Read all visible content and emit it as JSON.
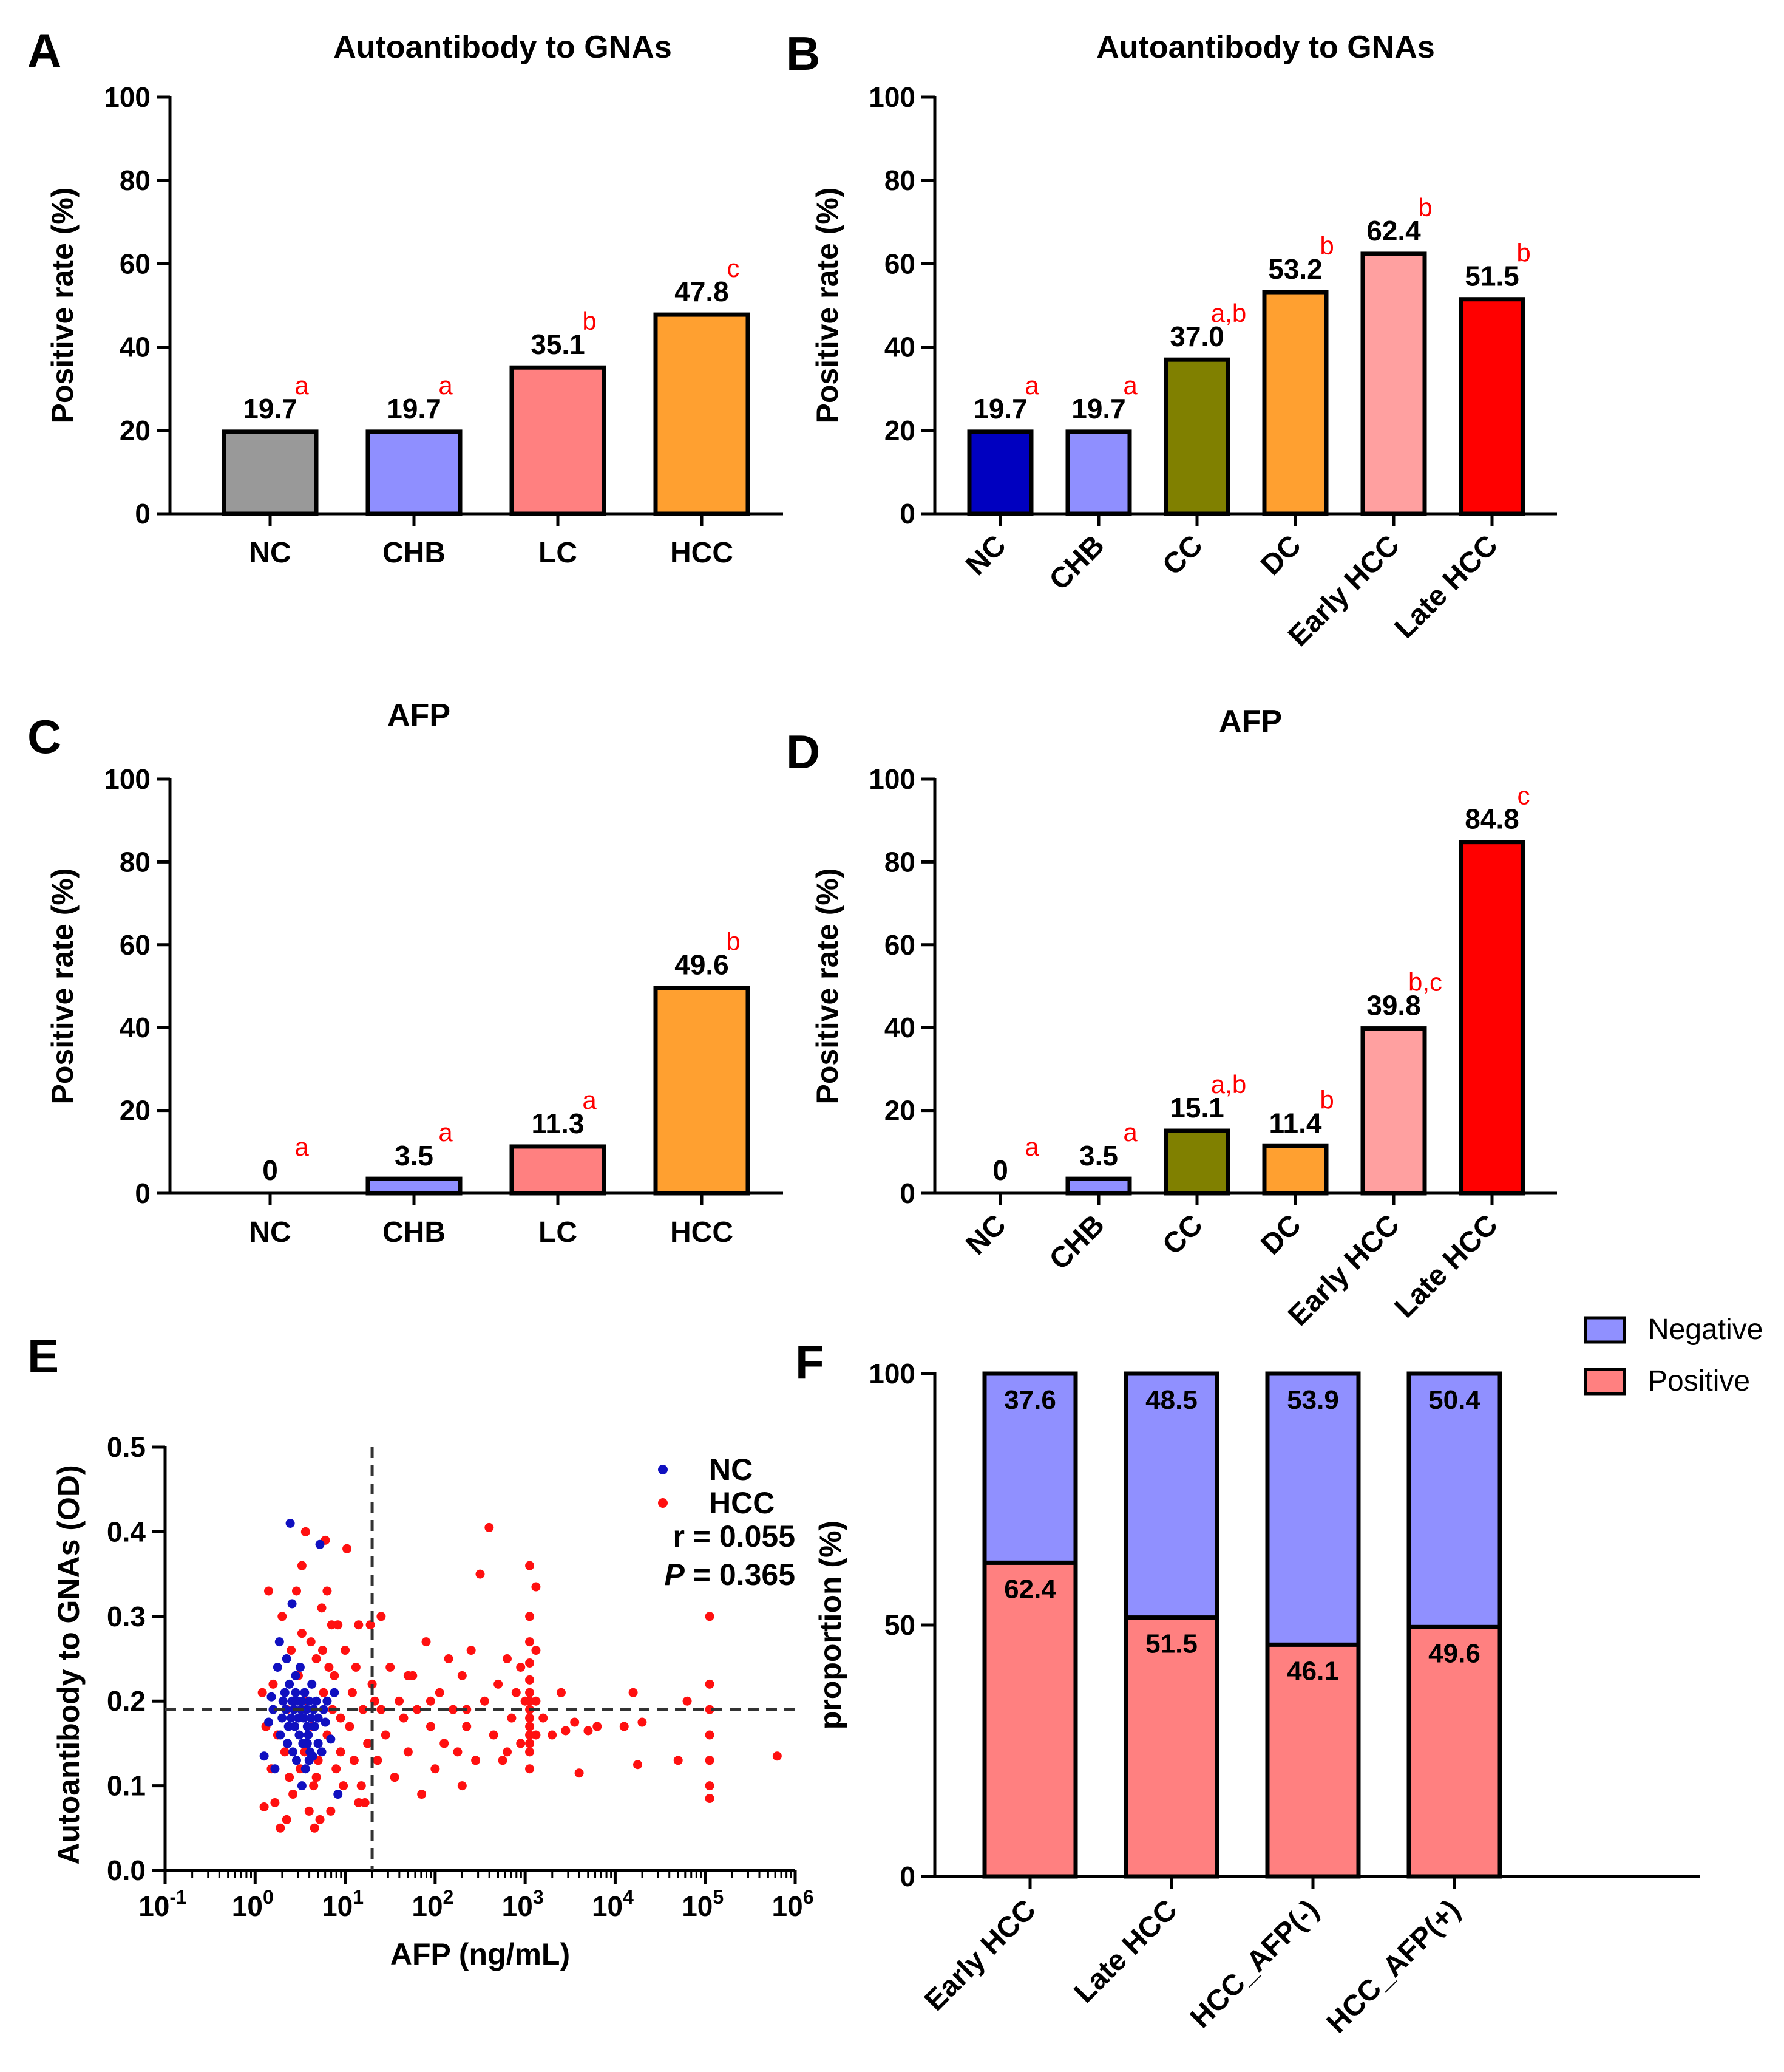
{
  "chart_data": [
    {
      "panel": "A",
      "type": "bar",
      "title": "Autoantibody to GNAs",
      "ylabel": "Positive rate  (%)",
      "ylim": [
        0,
        100
      ],
      "yticks": [
        0,
        20,
        40,
        60,
        80,
        100
      ],
      "categories": [
        "NC",
        "CHB",
        "LC",
        "HCC"
      ],
      "values": [
        19.7,
        19.7,
        35.1,
        47.8
      ],
      "value_labels": [
        "19.7",
        "19.7",
        "35.1",
        "47.8"
      ],
      "sig": [
        "a",
        "a",
        "b",
        "c"
      ],
      "colors": [
        "#999999",
        "#8f8fff",
        "#ff8080",
        "#ffa030"
      ]
    },
    {
      "panel": "B",
      "type": "bar",
      "title": "Autoantibody to GNAs",
      "ylabel": "Positive rate  (%)",
      "ylim": [
        0,
        100
      ],
      "yticks": [
        0,
        20,
        40,
        60,
        80,
        100
      ],
      "categories": [
        "NC",
        "CHB",
        "CC",
        "DC",
        "Early HCC",
        "Late HCC"
      ],
      "values": [
        19.7,
        19.7,
        37.0,
        53.2,
        62.4,
        51.5
      ],
      "value_labels": [
        "19.7",
        "19.7",
        "37.0",
        "53.2",
        "62.4",
        "51.5"
      ],
      "sig": [
        "a",
        "a",
        "a,b",
        "b",
        "b",
        "b"
      ],
      "colors": [
        "#0000c0",
        "#8f8fff",
        "#808000",
        "#ffa030",
        "#ffa0a0",
        "#ff0000"
      ]
    },
    {
      "panel": "C",
      "type": "bar",
      "title": "AFP",
      "ylabel": "Positive rate  (%)",
      "ylim": [
        0,
        100
      ],
      "yticks": [
        0,
        20,
        40,
        60,
        80,
        100
      ],
      "categories": [
        "NC",
        "CHB",
        "LC",
        "HCC"
      ],
      "values": [
        0,
        3.5,
        11.3,
        49.6
      ],
      "value_labels": [
        "0",
        "3.5",
        "11.3",
        "49.6"
      ],
      "sig": [
        "a",
        "a",
        "a",
        "b"
      ],
      "colors": [
        "#999999",
        "#8f8fff",
        "#ff8080",
        "#ffa030"
      ]
    },
    {
      "panel": "D",
      "type": "bar",
      "title": "AFP",
      "ylabel": "Positive rate  (%)",
      "ylim": [
        0,
        100
      ],
      "yticks": [
        0,
        20,
        40,
        60,
        80,
        100
      ],
      "categories": [
        "NC",
        "CHB",
        "CC",
        "DC",
        "Early HCC",
        "Late HCC"
      ],
      "values": [
        0,
        3.5,
        15.1,
        11.4,
        39.8,
        84.8
      ],
      "value_labels": [
        "0",
        "3.5",
        "15.1",
        "11.4",
        "39.8",
        "84.8"
      ],
      "sig": [
        "a",
        "a",
        "a,b",
        "b",
        "b,c",
        "c"
      ],
      "colors": [
        "#0000c0",
        "#8f8fff",
        "#808000",
        "#ffa030",
        "#ffa0a0",
        "#ff0000"
      ]
    },
    {
      "panel": "E",
      "type": "scatter",
      "xlabel": "AFP (ng/mL)",
      "ylabel": "Autoantibody to GNAs (OD)",
      "xscale": "log",
      "xlim_log10": [
        -1,
        6
      ],
      "xtick_bases": [
        "10",
        "10",
        "10",
        "10",
        "10",
        "10",
        "10",
        "10"
      ],
      "xtick_exps": [
        "-1",
        "0",
        "1",
        "2",
        "3",
        "4",
        "5",
        "6"
      ],
      "ylim": [
        0,
        0.5
      ],
      "yticks": [
        "0.0",
        "0.1",
        "0.2",
        "0.3",
        "0.4",
        "0.5"
      ],
      "cutoff_x_log10": 1.3,
      "cutoff_y": 0.19,
      "r_text": "r = 0.055",
      "p_text": "P",
      "p_value": "= 0.365",
      "series": [
        {
          "name": "NC",
          "color": "#1010c0",
          "points": [
            [
              0.1,
              0.135
            ],
            [
              0.15,
              0.175
            ],
            [
              0.18,
              0.205
            ],
            [
              0.2,
              0.19
            ],
            [
              0.22,
              0.12
            ],
            [
              0.25,
              0.24
            ],
            [
              0.27,
              0.27
            ],
            [
              0.28,
              0.16
            ],
            [
              0.3,
              0.18
            ],
            [
              0.31,
              0.2
            ],
            [
              0.33,
              0.21
            ],
            [
              0.34,
              0.19
            ],
            [
              0.35,
              0.25
            ],
            [
              0.36,
              0.15
            ],
            [
              0.37,
              0.17
            ],
            [
              0.38,
              0.22
            ],
            [
              0.39,
              0.41
            ],
            [
              0.4,
              0.18
            ],
            [
              0.41,
              0.315
            ],
            [
              0.41,
              0.2
            ],
            [
              0.42,
              0.14
            ],
            [
              0.43,
              0.19
            ],
            [
              0.44,
              0.17
            ],
            [
              0.45,
              0.21
            ],
            [
              0.46,
              0.13
            ],
            [
              0.47,
              0.2
            ],
            [
              0.48,
              0.18
            ],
            [
              0.49,
              0.16
            ],
            [
              0.5,
              0.24
            ],
            [
              0.51,
              0.19
            ],
            [
              0.52,
              0.2
            ],
            [
              0.53,
              0.15
            ],
            [
              0.54,
              0.18
            ],
            [
              0.55,
              0.21
            ],
            [
              0.56,
              0.12
            ],
            [
              0.57,
              0.19
            ],
            [
              0.58,
              0.17
            ],
            [
              0.59,
              0.16
            ],
            [
              0.6,
              0.2
            ],
            [
              0.61,
              0.14
            ],
            [
              0.62,
              0.18
            ],
            [
              0.63,
              0.22
            ],
            [
              0.64,
              0.135
            ],
            [
              0.65,
              0.19
            ],
            [
              0.66,
              0.17
            ],
            [
              0.68,
              0.2
            ],
            [
              0.7,
              0.15
            ],
            [
              0.72,
              0.385
            ],
            [
              0.74,
              0.14
            ],
            [
              0.76,
              0.19
            ],
            [
              0.78,
              0.175
            ],
            [
              0.8,
              0.2
            ],
            [
              0.84,
              0.155
            ],
            [
              0.88,
              0.21
            ],
            [
              0.92,
              0.09
            ],
            [
              0.6,
              0.13
            ],
            [
              0.52,
              0.1
            ],
            [
              0.45,
              0.23
            ],
            [
              0.58,
              0.15
            ],
            [
              0.7,
              0.18
            ]
          ]
        },
        {
          "name": "HCC",
          "color": "#ff1010",
          "points": [
            [
              0.08,
              0.21
            ],
            [
              0.1,
              0.075
            ],
            [
              0.12,
              0.17
            ],
            [
              0.15,
              0.33
            ],
            [
              0.18,
              0.12
            ],
            [
              0.2,
              0.22
            ],
            [
              0.22,
              0.08
            ],
            [
              0.25,
              0.16
            ],
            [
              0.28,
              0.05
            ],
            [
              0.3,
              0.3
            ],
            [
              0.33,
              0.14
            ],
            [
              0.35,
              0.19
            ],
            [
              0.38,
              0.11
            ],
            [
              0.4,
              0.26
            ],
            [
              0.42,
              0.09
            ],
            [
              0.44,
              0.2
            ],
            [
              0.46,
              0.33
            ],
            [
              0.48,
              0.23
            ],
            [
              0.5,
              0.12
            ],
            [
              0.52,
              0.36
            ],
            [
              0.54,
              0.15
            ],
            [
              0.56,
              0.4
            ],
            [
              0.58,
              0.2
            ],
            [
              0.6,
              0.07
            ],
            [
              0.62,
              0.27
            ],
            [
              0.64,
              0.17
            ],
            [
              0.66,
              0.05
            ],
            [
              0.68,
              0.25
            ],
            [
              0.7,
              0.13
            ],
            [
              0.72,
              0.06
            ],
            [
              0.74,
              0.31
            ],
            [
              0.76,
              0.21
            ],
            [
              0.78,
              0.39
            ],
            [
              0.8,
              0.16
            ],
            [
              0.82,
              0.24
            ],
            [
              0.84,
              0.07
            ],
            [
              0.86,
              0.19
            ],
            [
              0.88,
              0.23
            ],
            [
              0.9,
              0.12
            ],
            [
              0.92,
              0.29
            ],
            [
              0.95,
              0.18
            ],
            [
              0.98,
              0.1
            ],
            [
              1.0,
              0.26
            ],
            [
              1.02,
              0.38
            ],
            [
              1.05,
              0.17
            ],
            [
              1.08,
              0.21
            ],
            [
              1.1,
              0.13
            ],
            [
              1.12,
              0.24
            ],
            [
              1.15,
              0.29
            ],
            [
              1.18,
              0.1
            ],
            [
              1.2,
              0.19
            ],
            [
              1.22,
              0.08
            ],
            [
              1.25,
              0.15
            ],
            [
              1.28,
              0.29
            ],
            [
              1.3,
              0.22
            ],
            [
              1.33,
              0.2
            ],
            [
              1.36,
              0.13
            ],
            [
              1.4,
              0.3
            ],
            [
              1.45,
              0.16
            ],
            [
              1.5,
              0.24
            ],
            [
              1.55,
              0.11
            ],
            [
              1.6,
              0.2
            ],
            [
              1.65,
              0.18
            ],
            [
              1.7,
              0.14
            ],
            [
              1.75,
              0.23
            ],
            [
              1.8,
              0.19
            ],
            [
              1.85,
              0.09
            ],
            [
              1.9,
              0.27
            ],
            [
              1.95,
              0.17
            ],
            [
              2.0,
              0.12
            ],
            [
              2.05,
              0.21
            ],
            [
              2.1,
              0.15
            ],
            [
              2.15,
              0.25
            ],
            [
              2.2,
              0.19
            ],
            [
              2.25,
              0.14
            ],
            [
              2.3,
              0.23
            ],
            [
              2.35,
              0.17
            ],
            [
              2.4,
              0.26
            ],
            [
              2.45,
              0.13
            ],
            [
              2.5,
              0.35
            ],
            [
              2.55,
              0.2
            ],
            [
              2.6,
              0.405
            ],
            [
              2.65,
              0.16
            ],
            [
              2.7,
              0.22
            ],
            [
              2.75,
              0.13
            ],
            [
              2.8,
              0.25
            ],
            [
              2.85,
              0.18
            ],
            [
              2.9,
              0.21
            ],
            [
              2.95,
              0.15
            ],
            [
              3.0,
              0.2
            ],
            [
              3.05,
              0.36
            ],
            [
              3.05,
              0.3
            ],
            [
              3.05,
              0.27
            ],
            [
              3.05,
              0.245
            ],
            [
              3.05,
              0.225
            ],
            [
              3.05,
              0.21
            ],
            [
              3.05,
              0.2
            ],
            [
              3.05,
              0.19
            ],
            [
              3.05,
              0.18
            ],
            [
              3.05,
              0.17
            ],
            [
              3.05,
              0.16
            ],
            [
              3.05,
              0.15
            ],
            [
              3.05,
              0.14
            ],
            [
              3.05,
              0.12
            ],
            [
              3.12,
              0.335
            ],
            [
              3.12,
              0.26
            ],
            [
              3.12,
              0.2
            ],
            [
              3.12,
              0.16
            ],
            [
              3.2,
              0.18
            ],
            [
              3.3,
              0.16
            ],
            [
              3.4,
              0.21
            ],
            [
              3.45,
              0.165
            ],
            [
              3.55,
              0.175
            ],
            [
              3.6,
              0.115
            ],
            [
              3.7,
              0.165
            ],
            [
              3.8,
              0.17
            ],
            [
              4.1,
              0.17
            ],
            [
              4.2,
              0.21
            ],
            [
              4.25,
              0.125
            ],
            [
              4.3,
              0.175
            ],
            [
              4.7,
              0.13
            ],
            [
              4.8,
              0.2
            ],
            [
              5.05,
              0.3
            ],
            [
              5.05,
              0.22
            ],
            [
              5.05,
              0.19
            ],
            [
              5.05,
              0.16
            ],
            [
              5.05,
              0.13
            ],
            [
              5.05,
              0.1
            ],
            [
              5.05,
              0.085
            ],
            [
              5.8,
              0.135
            ],
            [
              2.3,
              0.1
            ],
            [
              1.7,
              0.23
            ],
            [
              0.55,
              0.14
            ],
            [
              0.65,
              0.1
            ],
            [
              0.75,
              0.26
            ],
            [
              0.95,
              0.14
            ],
            [
              1.15,
              0.08
            ],
            [
              1.95,
              0.2
            ],
            [
              2.35,
              0.19
            ],
            [
              2.8,
              0.14
            ],
            [
              2.95,
              0.24
            ],
            [
              0.35,
              0.06
            ],
            [
              0.85,
              0.29
            ],
            [
              1.4,
              0.19
            ],
            [
              0.52,
              0.28
            ],
            [
              0.68,
              0.11
            ],
            [
              0.8,
              0.33
            ]
          ]
        }
      ]
    },
    {
      "panel": "F",
      "type": "bar",
      "stacked": true,
      "ylabel": "proportion (%)",
      "ylim": [
        0,
        100
      ],
      "yticks": [
        0,
        50,
        100
      ],
      "categories": [
        "Early HCC",
        "Late HCC",
        "HCC_AFP(-)",
        "HCC_AFP(+)"
      ],
      "series": [
        {
          "name": "Positive",
          "color": "#ff8080",
          "values": [
            62.4,
            51.5,
            46.1,
            49.6
          ],
          "labels": [
            "62.4",
            "51.5",
            "46.1",
            "49.6"
          ]
        },
        {
          "name": "Negative",
          "color": "#9090ff",
          "values": [
            37.6,
            48.5,
            53.9,
            50.4
          ],
          "labels": [
            "37.6",
            "48.5",
            "53.9",
            "50.4"
          ]
        }
      ],
      "legend_position": "top-right"
    }
  ]
}
